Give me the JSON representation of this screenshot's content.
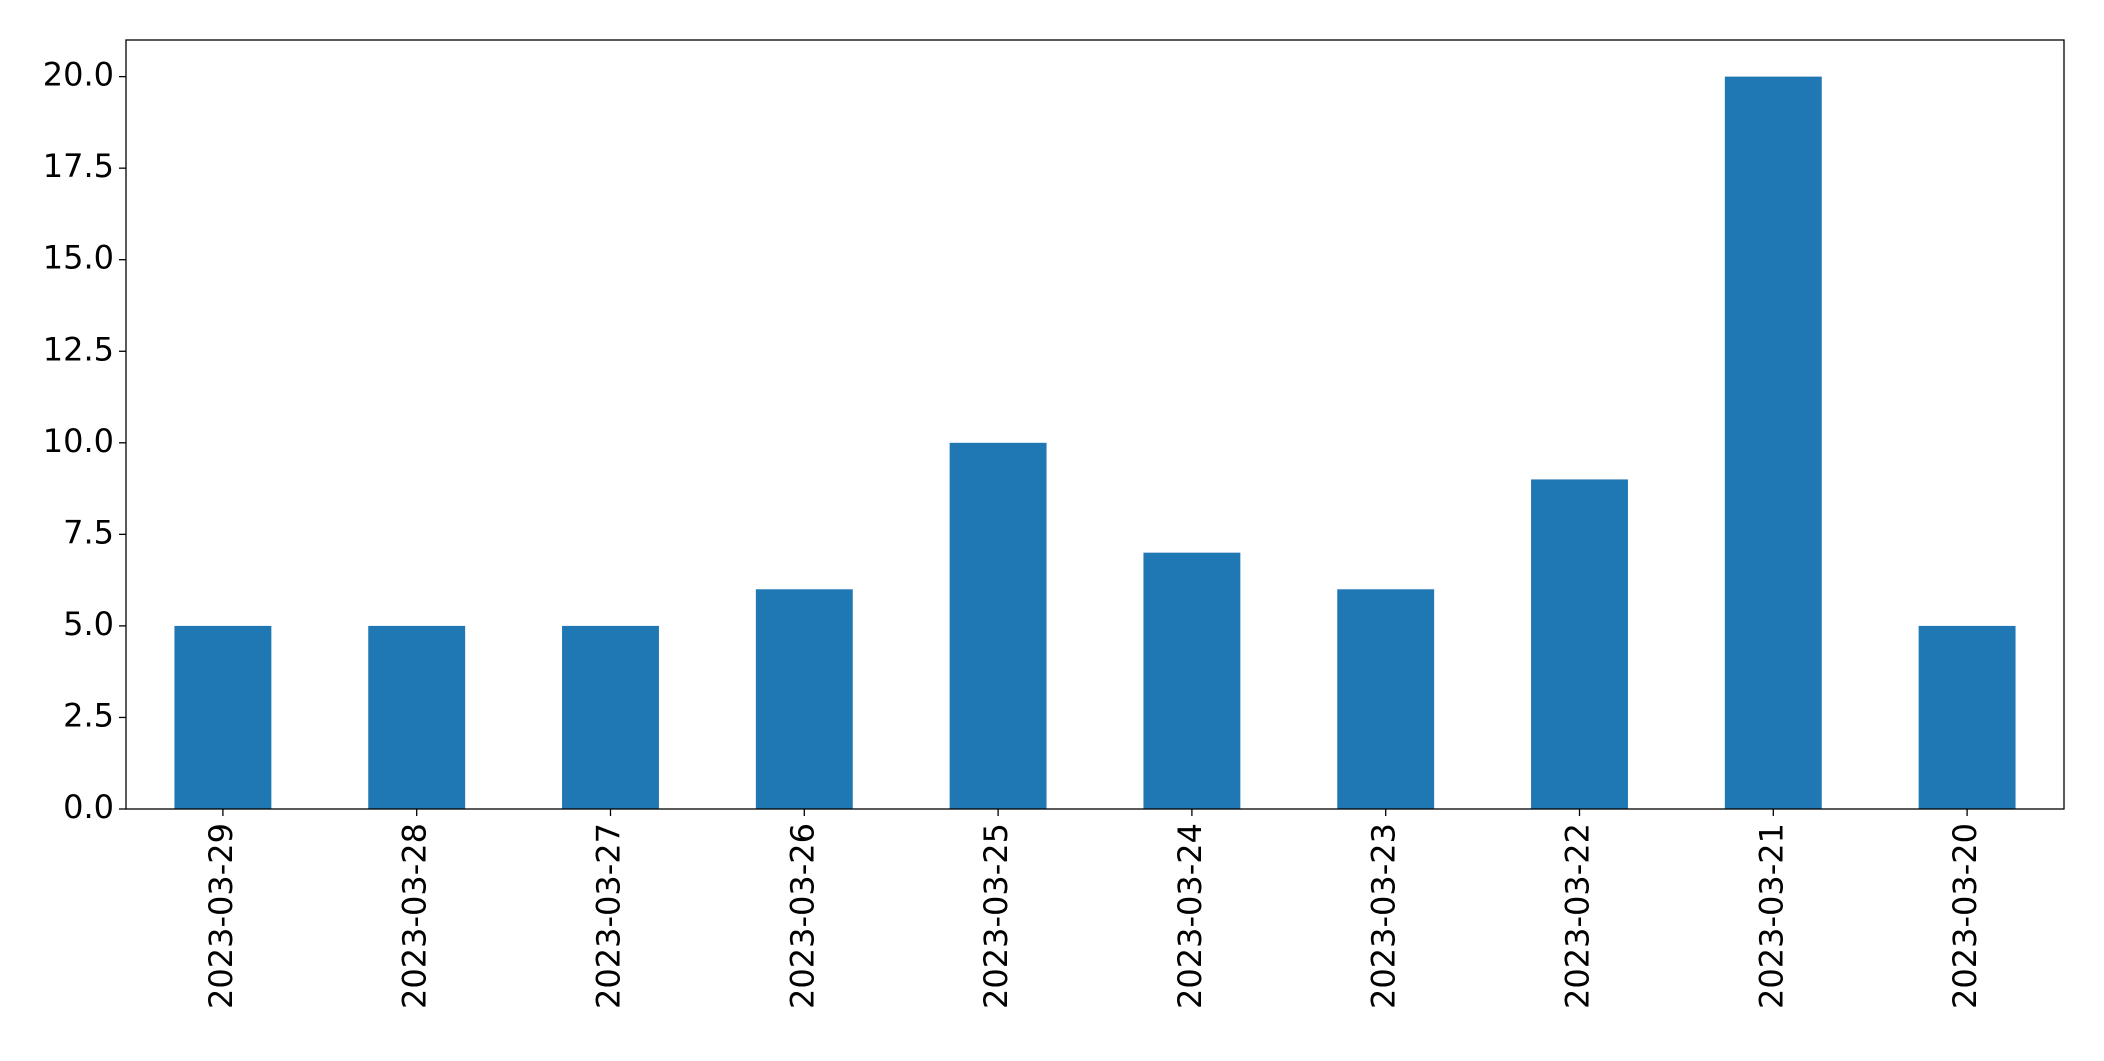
{
  "chart_data": {
    "type": "bar",
    "categories": [
      "2023-03-29",
      "2023-03-28",
      "2023-03-27",
      "2023-03-26",
      "2023-03-25",
      "2023-03-24",
      "2023-03-23",
      "2023-03-22",
      "2023-03-21",
      "2023-03-20"
    ],
    "values": [
      5,
      5,
      5,
      6,
      10,
      7,
      6,
      9,
      20,
      5
    ],
    "color": "#1f77b4",
    "ylim": [
      0,
      21
    ],
    "yticks": [
      {
        "value": 0,
        "label": "0.0"
      },
      2.5,
      {
        "value": 5,
        "label": "5.0"
      },
      7.5,
      {
        "value": 10,
        "label": "10.0"
      },
      12.5,
      {
        "value": 15,
        "label": "15.0"
      },
      17.5,
      {
        "value": 20,
        "label": "20.0"
      }
    ],
    "grid": false
  }
}
